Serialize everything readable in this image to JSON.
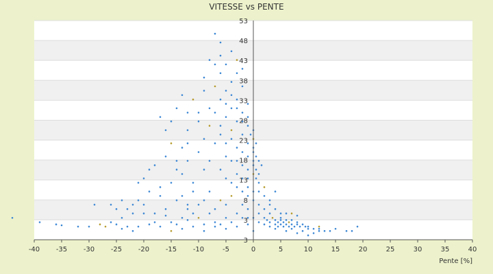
{
  "chart_data": {
    "type": "scatter",
    "title": "VITESSE vs PENTE",
    "xlabel": "Pente [%]",
    "ylabel": "",
    "xlim": [
      -40,
      40
    ],
    "ylim": [
      3,
      53
    ],
    "x_ticks": [
      "-40",
      "-35",
      "-30",
      "-25",
      "-20",
      "-15",
      "-10",
      "-5",
      "0",
      "5",
      "10",
      "15",
      "20",
      "25",
      "30",
      "35",
      "40"
    ],
    "y_ticks": [
      "3",
      "3",
      "8",
      "13",
      "18",
      "23",
      "28",
      "33",
      "38",
      "43",
      "48",
      "53"
    ],
    "grid": true,
    "legend": "none",
    "colors": {
      "points": "#3a86d4",
      "points_alt": "#b59a2a",
      "band": "#f0f0f0",
      "plot_bg": "#ffffff",
      "page_bg": "#edf2cc"
    },
    "series": [
      {
        "points": [
          [
            -44,
            8
          ],
          [
            -39,
            7
          ],
          [
            -36,
            6.5
          ],
          [
            -35,
            6.3
          ],
          [
            -30,
            6
          ],
          [
            -27,
            6
          ],
          [
            -25,
            6.5
          ],
          [
            -24,
            5.5
          ],
          [
            -22,
            11
          ],
          [
            -20,
            9
          ],
          [
            -18,
            7
          ],
          [
            -16,
            8.5
          ],
          [
            -15,
            7
          ],
          [
            -14,
            6.5
          ],
          [
            -13,
            8
          ],
          [
            -12,
            7.5
          ],
          [
            -12,
            10
          ],
          [
            -11,
            9
          ],
          [
            -10,
            8
          ],
          [
            -9,
            6.5
          ],
          [
            -8,
            9
          ],
          [
            -7,
            7
          ],
          [
            -6,
            6.5
          ],
          [
            -5,
            8
          ],
          [
            -5,
            11
          ],
          [
            -4,
            7
          ],
          [
            -3,
            9
          ],
          [
            -2,
            8
          ],
          [
            -20,
            17
          ],
          [
            -18,
            20
          ],
          [
            -16,
            22
          ],
          [
            -15,
            25
          ],
          [
            -14,
            19
          ],
          [
            -13,
            24
          ],
          [
            -12,
            21
          ],
          [
            -12,
            28
          ],
          [
            -11,
            16
          ],
          [
            -10,
            23
          ],
          [
            -10,
            30
          ],
          [
            -9,
            19
          ],
          [
            -9,
            26
          ],
          [
            -8,
            33
          ],
          [
            -8,
            21
          ],
          [
            -7,
            25
          ],
          [
            -7,
            38
          ],
          [
            -7,
            43
          ],
          [
            -6,
            29
          ],
          [
            -6,
            35
          ],
          [
            -6,
            41
          ],
          [
            -6,
            45
          ],
          [
            -5,
            22
          ],
          [
            -5,
            31
          ],
          [
            -5,
            37
          ],
          [
            -5,
            43
          ],
          [
            -4,
            26
          ],
          [
            -4,
            33
          ],
          [
            -4,
            39
          ],
          [
            -4,
            28
          ],
          [
            -3,
            24
          ],
          [
            -3,
            30
          ],
          [
            -3,
            35
          ],
          [
            -3,
            41
          ],
          [
            -2,
            20
          ],
          [
            -2,
            27
          ],
          [
            -2,
            32
          ],
          [
            -2,
            38
          ],
          [
            -1,
            22
          ],
          [
            -1,
            25
          ],
          [
            -1,
            29
          ],
          [
            -1,
            34
          ],
          [
            0,
            18
          ],
          [
            0,
            21
          ],
          [
            0,
            24
          ],
          [
            0,
            20
          ],
          [
            0.5,
            19
          ],
          [
            0.5,
            17
          ],
          [
            1,
            18
          ],
          [
            1,
            16
          ],
          [
            1.5,
            20
          ],
          [
            1,
            14
          ],
          [
            -15,
            30
          ],
          [
            -14,
            33
          ],
          [
            -13,
            36
          ],
          [
            -11,
            35
          ],
          [
            -10,
            32
          ],
          [
            -9,
            37
          ],
          [
            -16,
            28
          ],
          [
            -17,
            31
          ],
          [
            -12,
            32
          ],
          [
            -19,
            14
          ],
          [
            -23,
            10
          ],
          [
            -21,
            12
          ],
          [
            -17,
            15
          ],
          [
            -13,
            13
          ],
          [
            -10,
            11
          ],
          [
            -8,
            14
          ],
          [
            -6,
            12
          ],
          [
            -4,
            16
          ],
          [
            -3,
            18
          ],
          [
            -2,
            14
          ],
          [
            0,
            12
          ],
          [
            1,
            11
          ],
          [
            1,
            9
          ],
          [
            1,
            7
          ],
          [
            2,
            8
          ],
          [
            2,
            6.5
          ],
          [
            2.5,
            7.5
          ],
          [
            3,
            6
          ],
          [
            3,
            7
          ],
          [
            3.5,
            8
          ],
          [
            4,
            6.5
          ],
          [
            4,
            7.5
          ],
          [
            4.5,
            6
          ],
          [
            4.5,
            7
          ],
          [
            5,
            6.5
          ],
          [
            5,
            7.5
          ],
          [
            5,
            8
          ],
          [
            5.5,
            6
          ],
          [
            5.5,
            7
          ],
          [
            6,
            6.5
          ],
          [
            6,
            7.5
          ],
          [
            6.5,
            6
          ],
          [
            6.5,
            7
          ],
          [
            7,
            6.5
          ],
          [
            7,
            7.5
          ],
          [
            7.5,
            6
          ],
          [
            8,
            6.5
          ],
          [
            8,
            7
          ],
          [
            8.5,
            6
          ],
          [
            9,
            6.5
          ],
          [
            9.5,
            6
          ],
          [
            10,
            6
          ],
          [
            10,
            5.5
          ],
          [
            11,
            5.5
          ],
          [
            12,
            5
          ],
          [
            12,
            6
          ],
          [
            13,
            5
          ],
          [
            14,
            5
          ],
          [
            15,
            5.5
          ],
          [
            17,
            5
          ],
          [
            18,
            5
          ],
          [
            19,
            6
          ],
          [
            2,
            10
          ],
          [
            3,
            11
          ],
          [
            3,
            9
          ],
          [
            4,
            10
          ],
          [
            5,
            9
          ],
          [
            6,
            9
          ],
          [
            7,
            9
          ],
          [
            8,
            8.5
          ],
          [
            4,
            5.5
          ],
          [
            6,
            5
          ],
          [
            7,
            5.5
          ],
          [
            8,
            4.5
          ],
          [
            9,
            5
          ],
          [
            10,
            4
          ],
          [
            11,
            4.5
          ],
          [
            12,
            5.5
          ],
          [
            3,
            12
          ],
          [
            2,
            13
          ],
          [
            4,
            14
          ],
          [
            2,
            15
          ],
          [
            -1,
            13
          ],
          [
            -2,
            11
          ],
          [
            -7,
            10
          ],
          [
            -9,
            12
          ],
          [
            -12,
            11
          ],
          [
            -14,
            12
          ],
          [
            -16,
            10
          ],
          [
            -18,
            9
          ],
          [
            -20,
            11
          ],
          [
            -22,
            9
          ],
          [
            -24,
            8
          ],
          [
            -26,
            7
          ],
          [
            -28,
            6.5
          ],
          [
            -32,
            6
          ],
          [
            -29,
            11
          ],
          [
            -26,
            11
          ],
          [
            -21,
            16
          ],
          [
            -19,
            19
          ],
          [
            -24,
            12
          ],
          [
            -25,
            10
          ],
          [
            -23,
            6
          ],
          [
            -22,
            5
          ],
          [
            -21,
            6
          ],
          [
            -19,
            6.5
          ],
          [
            -17,
            6
          ],
          [
            -15,
            5
          ],
          [
            -13,
            5.5
          ],
          [
            -11,
            6
          ],
          [
            -9,
            5
          ],
          [
            -7,
            6
          ],
          [
            -5,
            5.5
          ],
          [
            -3,
            6
          ],
          [
            -1,
            6.5
          ],
          [
            -1,
            8
          ],
          [
            -1,
            10
          ],
          [
            0,
            14
          ],
          [
            0,
            8
          ],
          [
            0,
            5
          ],
          [
            -3,
            44
          ],
          [
            -2,
            42
          ],
          [
            -4,
            46
          ],
          [
            -6,
            48
          ],
          [
            -7,
            50
          ],
          [
            -8,
            44
          ],
          [
            -9,
            40
          ],
          [
            -5,
            34
          ],
          [
            -4,
            36
          ],
          [
            -3,
            33
          ],
          [
            -2,
            30
          ],
          [
            -1,
            31
          ],
          [
            0,
            28
          ],
          [
            0,
            26
          ],
          [
            0,
            23
          ],
          [
            0.5,
            22
          ],
          [
            1,
            21
          ],
          [
            0.5,
            25
          ],
          [
            -0.5,
            27
          ],
          [
            -1,
            19
          ],
          [
            -11,
            14
          ],
          [
            -13,
            18
          ],
          [
            -15,
            16
          ],
          [
            -17,
            13
          ],
          [
            -14,
            21
          ],
          [
            -12,
            25
          ],
          [
            -8,
            29
          ],
          [
            -7,
            32
          ],
          [
            -6,
            27
          ],
          [
            -5,
            25
          ],
          [
            -6,
            19
          ],
          [
            -5,
            17
          ],
          [
            -4,
            21
          ],
          [
            -3,
            21
          ],
          [
            -2,
            23
          ],
          [
            -1,
            17
          ],
          [
            -1,
            15
          ],
          [
            -2,
            17
          ],
          [
            -3,
            15
          ],
          [
            -4,
            13
          ]
        ]
      }
    ]
  }
}
